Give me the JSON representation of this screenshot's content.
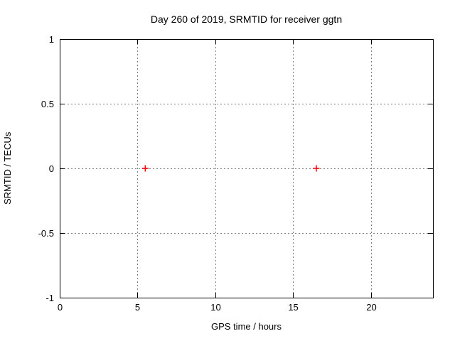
{
  "chart_data": {
    "type": "scatter",
    "title": "Day 260 of 2019, SRMTID for receiver ggtn",
    "xlabel": "GPS time / hours",
    "ylabel": "SRMTID / TECUs",
    "xlim": [
      0,
      24
    ],
    "ylim": [
      -1,
      1
    ],
    "x_ticks": [
      {
        "value": 0,
        "label": "0"
      },
      {
        "value": 5,
        "label": "5"
      },
      {
        "value": 10,
        "label": "10"
      },
      {
        "value": 15,
        "label": "15"
      },
      {
        "value": 20,
        "label": "20"
      }
    ],
    "y_ticks": [
      {
        "value": -1,
        "label": "-1"
      },
      {
        "value": -0.5,
        "label": "-0.5"
      },
      {
        "value": 0,
        "label": "0"
      },
      {
        "value": 0.5,
        "label": "0.5"
      },
      {
        "value": 1,
        "label": "1"
      }
    ],
    "grid": true,
    "legend_position": "none",
    "series": [
      {
        "name": "SRMTID",
        "marker": "plus",
        "color": "#ff0000",
        "points": [
          {
            "x": 5.5,
            "y": 0.0
          },
          {
            "x": 16.5,
            "y": 0.0
          }
        ]
      }
    ],
    "colors": {
      "background": "#ffffff",
      "axis": "#000000",
      "grid": "#808080",
      "text": "#000000"
    }
  }
}
